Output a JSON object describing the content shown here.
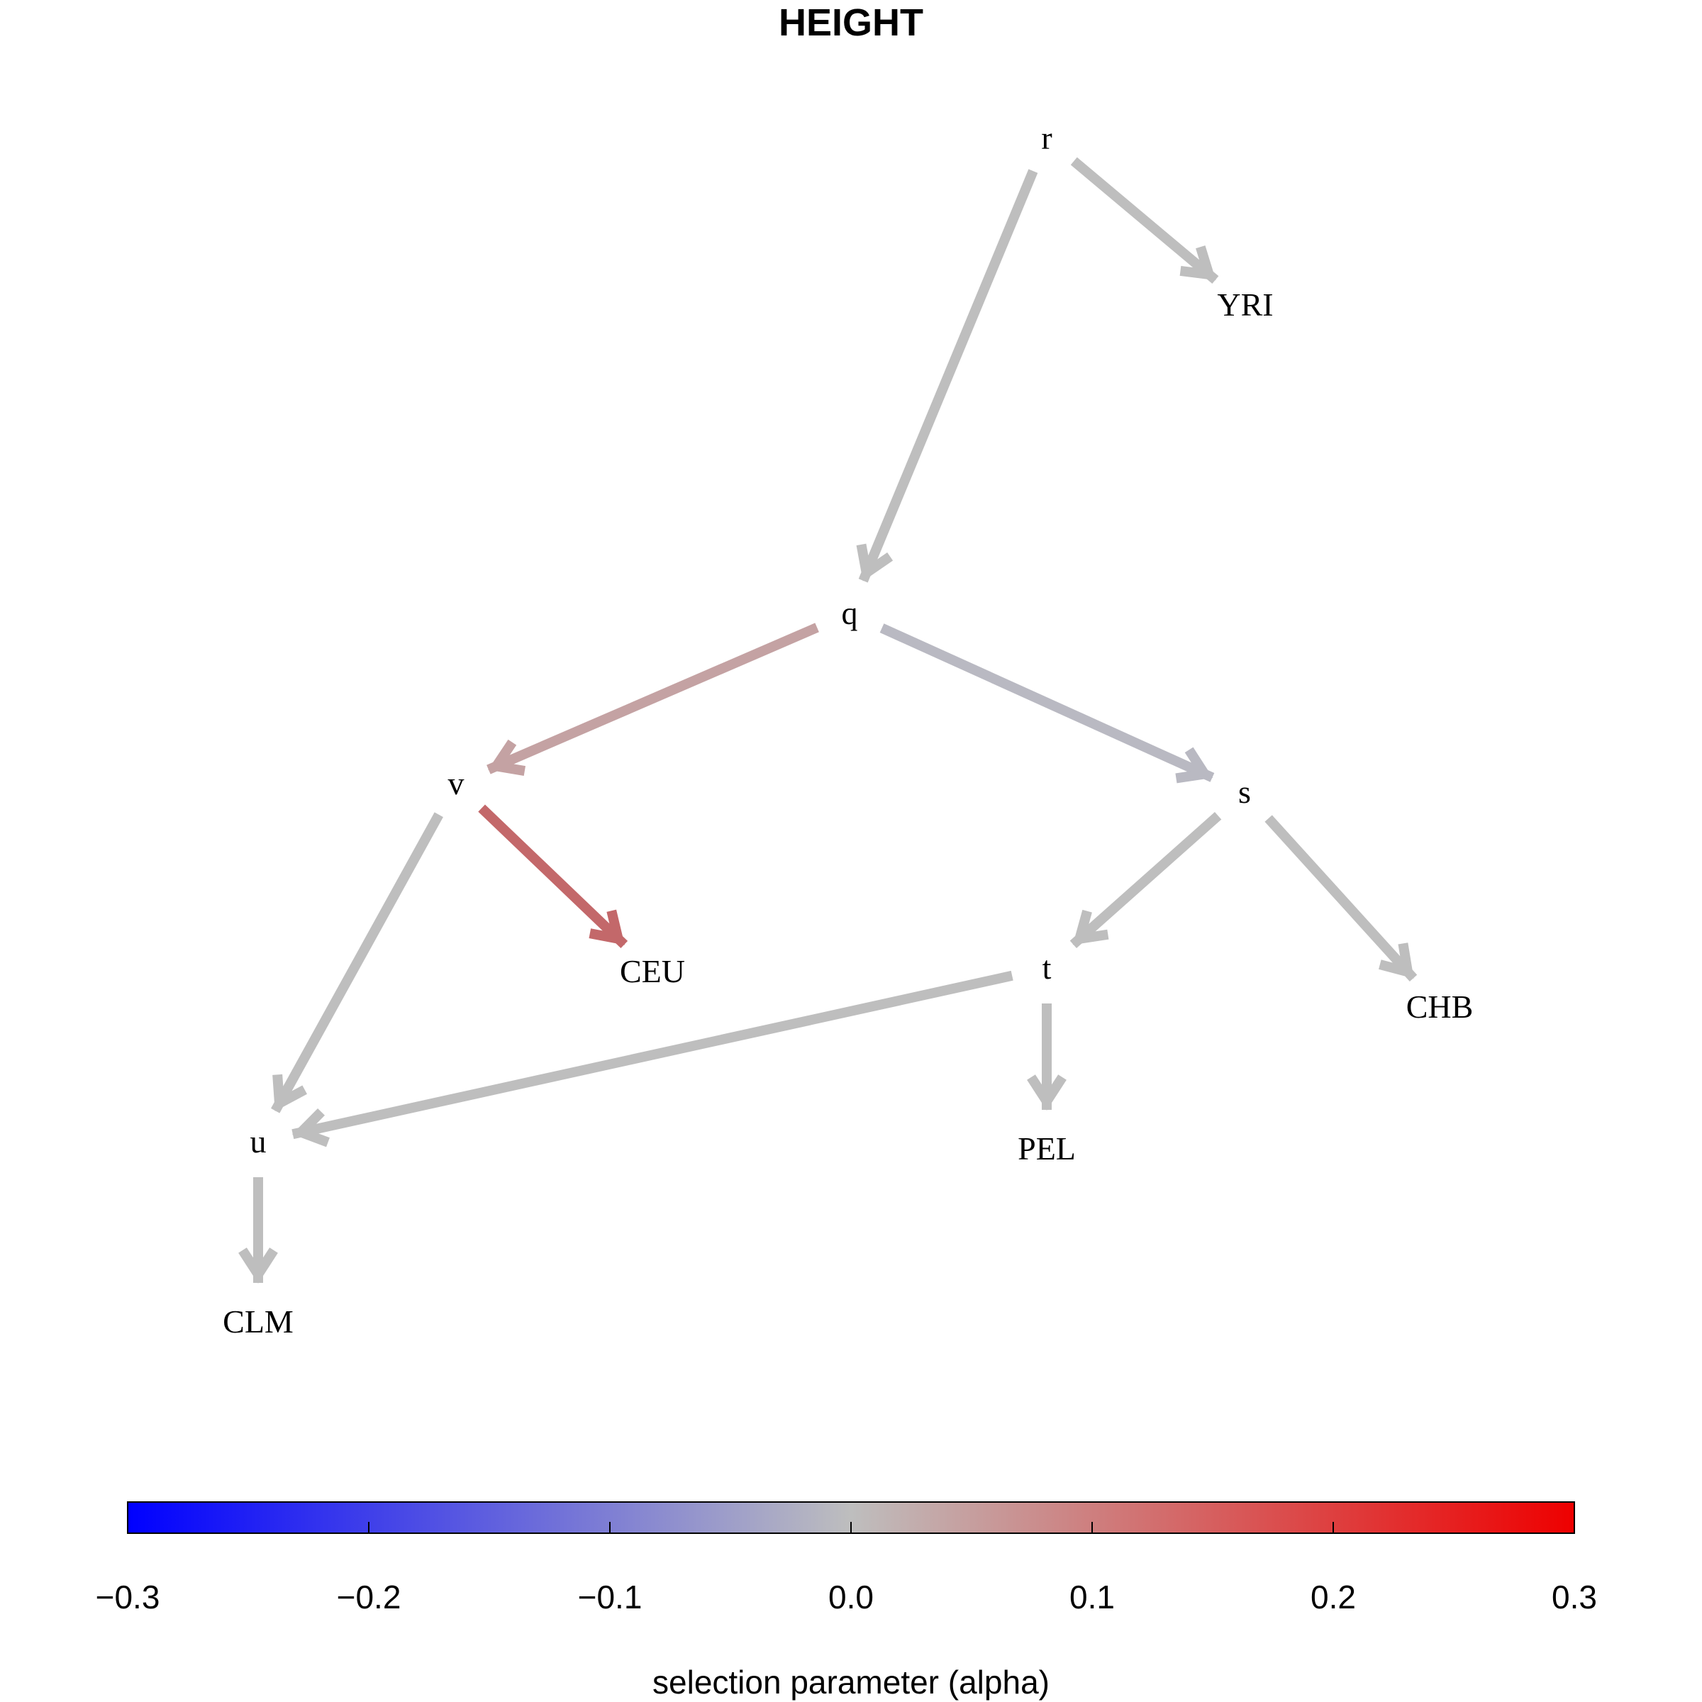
{
  "title": "HEIGHT",
  "nodes": [
    {
      "id": "r",
      "label": "r"
    },
    {
      "id": "q",
      "label": "q"
    },
    {
      "id": "YRI",
      "label": "YRI"
    },
    {
      "id": "v",
      "label": "v"
    },
    {
      "id": "s",
      "label": "s"
    },
    {
      "id": "CEU",
      "label": "CEU"
    },
    {
      "id": "t",
      "label": "t"
    },
    {
      "id": "CHB",
      "label": "CHB"
    },
    {
      "id": "u",
      "label": "u"
    },
    {
      "id": "PEL",
      "label": "PEL"
    },
    {
      "id": "CLM",
      "label": "CLM"
    }
  ],
  "edges": [
    {
      "from": "r",
      "to": "YRI",
      "color": "#bebebe"
    },
    {
      "from": "r",
      "to": "q",
      "color": "#bebebe"
    },
    {
      "from": "q",
      "to": "v",
      "color": "#c4a2a3"
    },
    {
      "from": "q",
      "to": "s",
      "color": "#b9b9c2"
    },
    {
      "from": "v",
      "to": "CEU",
      "color": "#c3686a"
    },
    {
      "from": "v",
      "to": "u",
      "color": "#bebebe"
    },
    {
      "from": "s",
      "to": "t",
      "color": "#bebebe"
    },
    {
      "from": "s",
      "to": "CHB",
      "color": "#bebebe"
    },
    {
      "from": "t",
      "to": "u",
      "color": "#bebebe"
    },
    {
      "from": "t",
      "to": "PEL",
      "color": "#bebebe"
    },
    {
      "from": "u",
      "to": "CLM",
      "color": "#bebebe"
    }
  ],
  "colorbar": {
    "min": -0.3,
    "max": 0.3,
    "low_color": "#0000ff",
    "mid_color": "#bebebe",
    "high_color": "#ee0000",
    "ticks": [
      "−0.3",
      "−0.2",
      "−0.1",
      "0.0",
      "0.1",
      "0.2",
      "0.3"
    ],
    "label": "selection parameter (alpha)"
  }
}
